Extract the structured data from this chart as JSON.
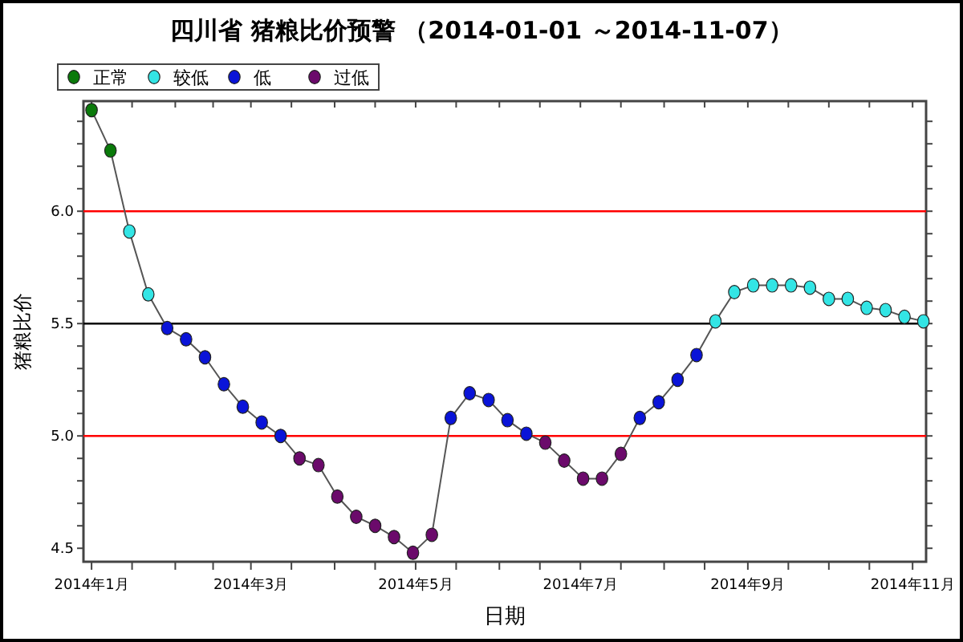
{
  "chart_data": {
    "type": "scatter",
    "title": "四川省 猪粮比价预警 （2014-01-01 ～2014-11-07）",
    "xlabel": "日期",
    "ylabel": "猪粮比价",
    "xlim": [
      "2013-12-29",
      "2014-11-06"
    ],
    "xticks": [
      {
        "value": "2014-01-01",
        "label": "2014年1月"
      },
      {
        "value": "2014-01-16",
        "label": null
      },
      {
        "value": "2014-02-01",
        "label": null
      },
      {
        "value": "2014-02-15",
        "label": null
      },
      {
        "value": "2014-03-01",
        "label": "2014年3月"
      },
      {
        "value": "2014-03-16",
        "label": null
      },
      {
        "value": "2014-04-01",
        "label": null
      },
      {
        "value": "2014-04-16",
        "label": null
      },
      {
        "value": "2014-05-01",
        "label": "2014年5月"
      },
      {
        "value": "2014-05-16",
        "label": null
      },
      {
        "value": "2014-06-01",
        "label": null
      },
      {
        "value": "2014-06-16",
        "label": null
      },
      {
        "value": "2014-07-01",
        "label": "2014年7月"
      },
      {
        "value": "2014-07-16",
        "label": null
      },
      {
        "value": "2014-08-01",
        "label": null
      },
      {
        "value": "2014-08-16",
        "label": null
      },
      {
        "value": "2014-09-01",
        "label": "2014年9月"
      },
      {
        "value": "2014-09-16",
        "label": null
      },
      {
        "value": "2014-10-01",
        "label": null
      },
      {
        "value": "2014-10-16",
        "label": null
      },
      {
        "value": "2014-11-01",
        "label": "2014年11月"
      }
    ],
    "ylim": [
      4.44,
      6.49
    ],
    "yticks": [
      4.5,
      {
        "value": 4.6,
        "label": null
      },
      {
        "value": 4.7,
        "label": null
      },
      {
        "value": 4.8,
        "label": null
      },
      {
        "value": 4.9,
        "label": null
      },
      {
        "value": 5.0,
        "label": "5.0"
      },
      {
        "value": 5.1,
        "label": null
      },
      {
        "value": 5.2,
        "label": null
      },
      {
        "value": 5.3,
        "label": null
      },
      {
        "value": 5.4,
        "label": null
      },
      5.5,
      {
        "value": 5.6,
        "label": null
      },
      {
        "value": 5.7,
        "label": null
      },
      {
        "value": 5.8,
        "label": null
      },
      {
        "value": 5.9,
        "label": null
      },
      {
        "value": 6.0,
        "label": "6.0"
      },
      {
        "value": 6.1,
        "label": null
      },
      {
        "value": 6.2,
        "label": null
      },
      {
        "value": 6.3,
        "label": null
      },
      {
        "value": 6.4,
        "label": null
      }
    ],
    "ref_lines": [
      {
        "axis": "y",
        "value": 6.0,
        "color": "#ff0000"
      },
      {
        "axis": "y",
        "value": 5.5,
        "color": "#000000"
      },
      {
        "axis": "y",
        "value": 5.0,
        "color": "#ff0000"
      }
    ],
    "legend": "top left",
    "marker": "circle",
    "grid": false,
    "series": [
      {
        "type": "line",
        "marker": "none",
        "color": "#555555",
        "x": [
          "2014-01-01",
          "2014-01-08",
          "2014-01-15",
          "2014-01-22",
          "2014-01-29",
          "2014-02-05",
          "2014-02-12",
          "2014-02-19",
          "2014-02-26",
          "2014-03-05",
          "2014-03-12",
          "2014-03-19",
          "2014-03-26",
          "2014-04-02",
          "2014-04-09",
          "2014-04-16",
          "2014-04-23",
          "2014-04-30",
          "2014-05-07",
          "2014-05-14",
          "2014-05-21",
          "2014-05-28",
          "2014-06-04",
          "2014-06-11",
          "2014-06-18",
          "2014-06-25",
          "2014-07-02",
          "2014-07-09",
          "2014-07-16",
          "2014-07-23",
          "2014-07-30",
          "2014-08-06",
          "2014-08-13",
          "2014-08-20",
          "2014-08-27",
          "2014-09-03",
          "2014-09-10",
          "2014-09-17",
          "2014-09-24",
          "2014-10-01",
          "2014-10-08",
          "2014-10-15",
          "2014-10-22",
          "2014-10-29",
          "2014-11-05"
        ],
        "values": [
          6.45,
          6.27,
          5.91,
          5.63,
          5.48,
          5.43,
          5.35,
          5.23,
          5.13,
          5.06,
          5.0,
          4.9,
          4.87,
          4.73,
          4.64,
          4.6,
          4.55,
          4.48,
          4.56,
          5.08,
          5.19,
          5.16,
          5.07,
          5.01,
          4.97,
          4.89,
          4.81,
          4.81,
          4.92,
          5.08,
          5.15,
          5.25,
          5.36,
          5.51,
          5.64,
          5.67,
          5.67,
          5.67,
          5.66,
          5.61,
          5.61,
          5.57,
          5.56,
          5.53,
          5.51
        ]
      },
      {
        "name": "正常",
        "color": "#0a7a0a",
        "x": [
          "2014-01-01",
          "2014-01-08"
        ],
        "values": [
          6.45,
          6.27
        ]
      },
      {
        "name": "较低",
        "color": "#33e5e5",
        "x": [
          "2014-01-15",
          "2014-01-22",
          "2014-08-20",
          "2014-08-27",
          "2014-09-03",
          "2014-09-10",
          "2014-09-17",
          "2014-09-24",
          "2014-10-01",
          "2014-10-08",
          "2014-10-15",
          "2014-10-22",
          "2014-10-29",
          "2014-11-05"
        ],
        "values": [
          5.91,
          5.63,
          5.51,
          5.64,
          5.67,
          5.67,
          5.67,
          5.66,
          5.61,
          5.61,
          5.57,
          5.56,
          5.53,
          5.51
        ]
      },
      {
        "name": "低",
        "color": "#0a14d8",
        "x": [
          "2014-01-29",
          "2014-02-05",
          "2014-02-12",
          "2014-02-19",
          "2014-02-26",
          "2014-03-05",
          "2014-03-12",
          "2014-05-14",
          "2014-05-21",
          "2014-05-28",
          "2014-06-04",
          "2014-06-11",
          "2014-07-23",
          "2014-07-30",
          "2014-08-06",
          "2014-08-13"
        ],
        "values": [
          5.48,
          5.43,
          5.35,
          5.23,
          5.13,
          5.06,
          5.0,
          5.08,
          5.19,
          5.16,
          5.07,
          5.01,
          5.08,
          5.15,
          5.25,
          5.36
        ]
      },
      {
        "name": "过低",
        "color": "#6b0a6b",
        "x": [
          "2014-03-19",
          "2014-03-26",
          "2014-04-02",
          "2014-04-09",
          "2014-04-16",
          "2014-04-23",
          "2014-04-30",
          "2014-05-07",
          "2014-06-18",
          "2014-06-25",
          "2014-07-02",
          "2014-07-09",
          "2014-07-16"
        ],
        "values": [
          4.9,
          4.87,
          4.73,
          4.64,
          4.6,
          4.55,
          4.48,
          4.56,
          4.97,
          4.89,
          4.81,
          4.81,
          4.92
        ]
      }
    ]
  }
}
